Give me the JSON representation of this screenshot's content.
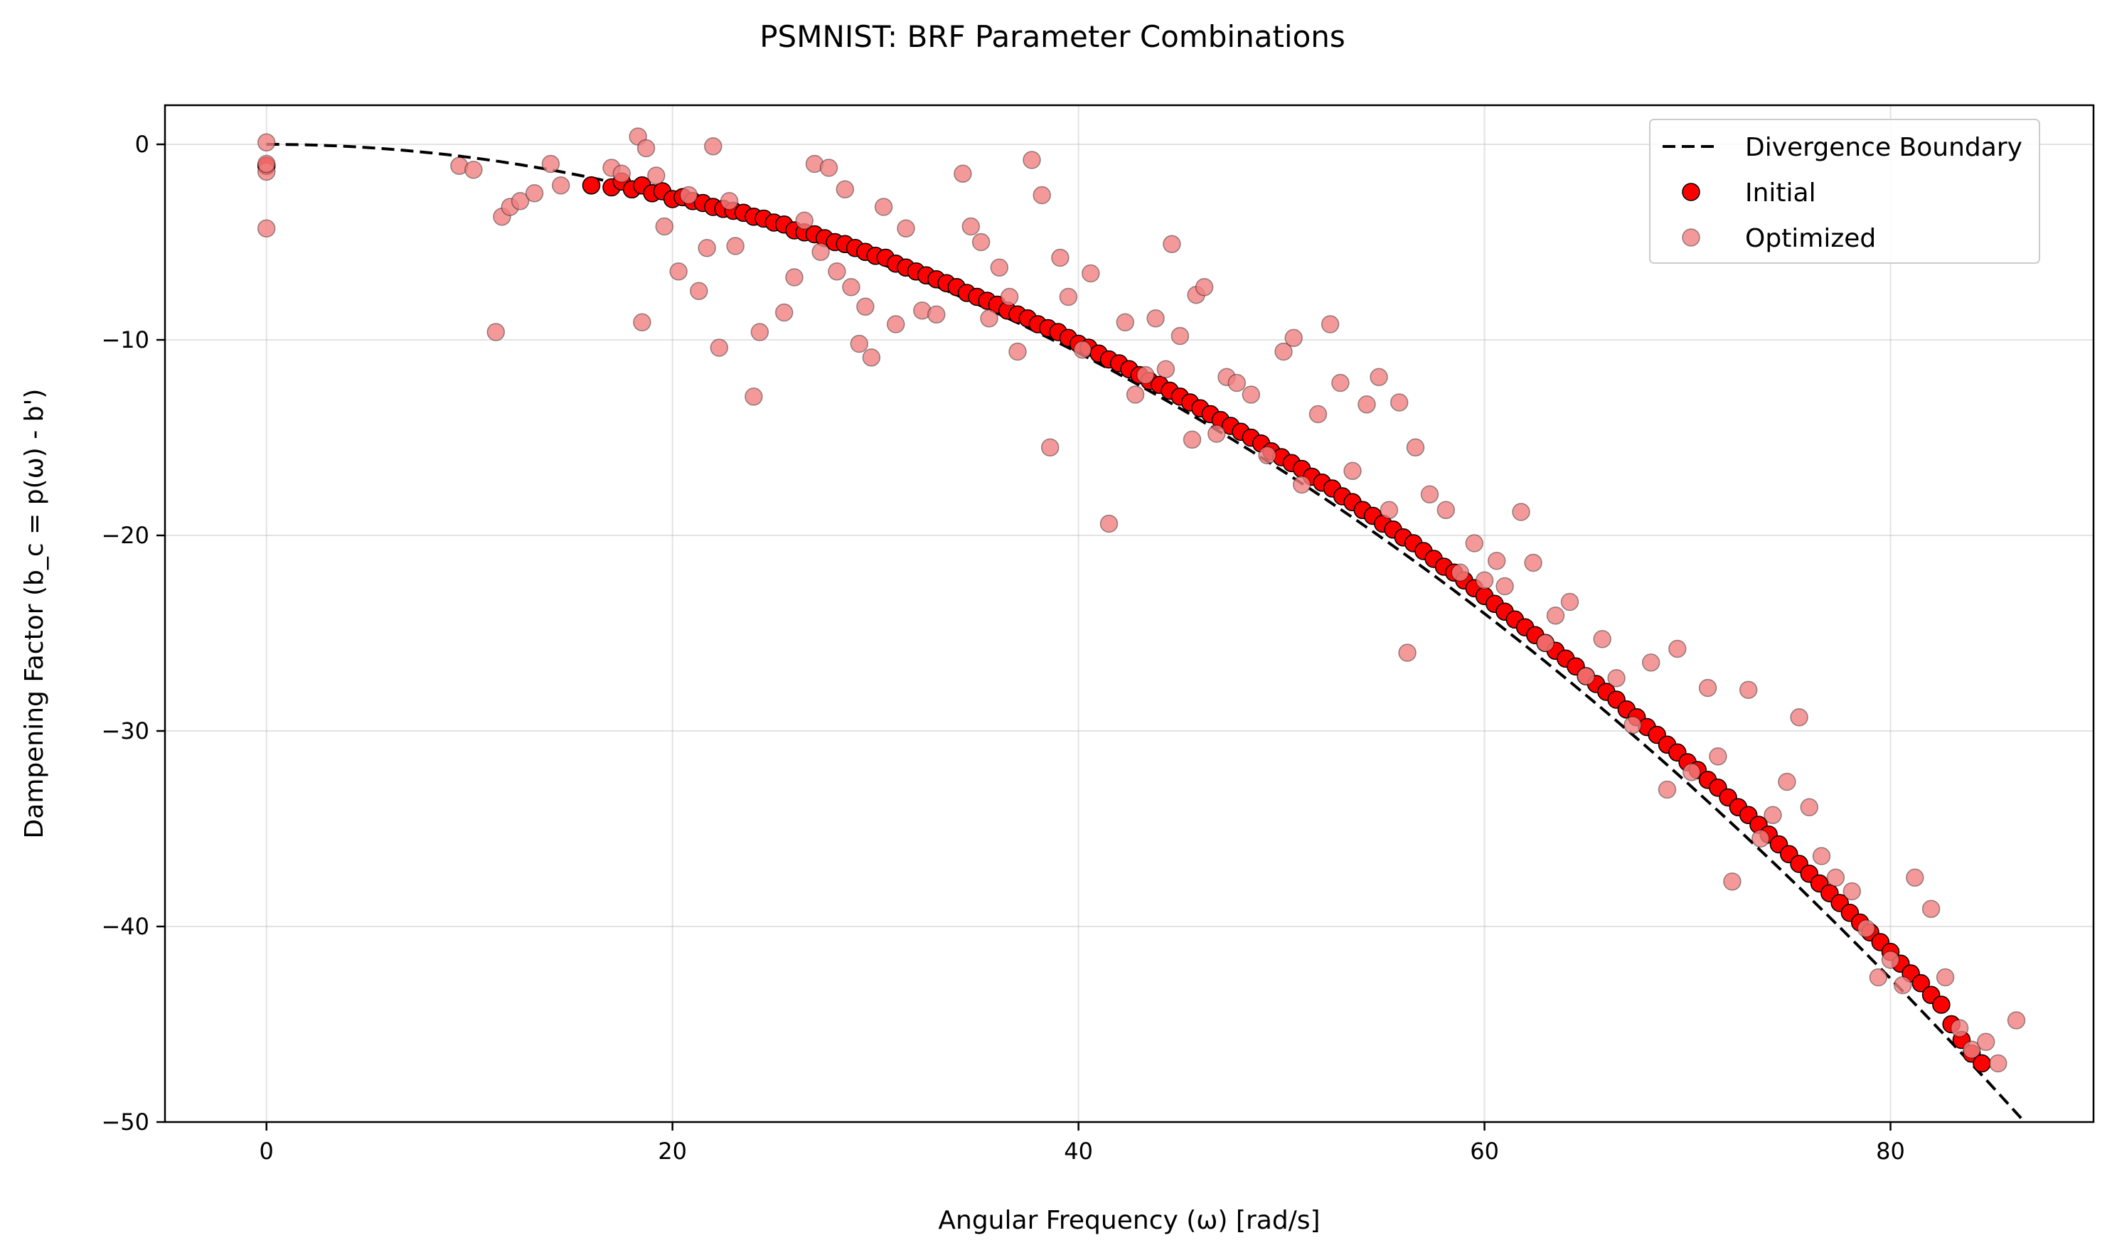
{
  "chart_data": {
    "type": "scatter",
    "title": "PSMNIST: BRF Parameter Combinations",
    "xlabel": "Angular Frequency (ω) [rad/s]",
    "ylabel": "Dampening Factor (b_c = p(ω) - b')",
    "xlim": [
      -5,
      90
    ],
    "ylim": [
      -50,
      2
    ],
    "xticks": [
      0,
      20,
      40,
      60,
      80
    ],
    "yticks": [
      0,
      -10,
      -20,
      -30,
      -40,
      -50
    ],
    "xtick_labels": [
      "0",
      "20",
      "40",
      "60",
      "80"
    ],
    "ytick_labels": [
      "0",
      "−10",
      "−20",
      "−30",
      "−40",
      "−50"
    ],
    "grid": true,
    "legend": {
      "position": "top-right"
    },
    "series": [
      {
        "name": "Divergence Boundary",
        "kind": "line",
        "style": "dashed",
        "color": "#000000",
        "function": "b = -omega^2 / 150",
        "x": [
          0,
          10,
          20,
          30,
          40,
          50,
          60,
          70,
          80,
          86.6
        ],
        "y": [
          0,
          -0.67,
          -2.67,
          -6.0,
          -10.67,
          -16.67,
          -24.0,
          -32.67,
          -42.67,
          -50.0
        ]
      },
      {
        "name": "Initial",
        "kind": "scatter",
        "color": "#ff0000",
        "edgecolor": "#000000",
        "x": [
          0,
          16,
          17,
          17.5,
          18,
          18.5,
          19,
          19.5,
          20,
          20.5,
          21,
          21.5,
          22,
          22.5,
          23,
          23.5,
          24,
          24.5,
          25,
          25.5,
          26,
          26.5,
          27,
          27.5,
          28,
          28.5,
          29,
          29.5,
          30,
          30.5,
          31,
          31.5,
          32,
          32.5,
          33,
          33.5,
          34,
          34.5,
          35,
          35.5,
          36,
          36.5,
          37,
          37.5,
          38,
          38.5,
          39,
          39.5,
          40,
          40.5,
          41,
          41.5,
          42,
          42.5,
          43,
          43.5,
          44,
          44.5,
          45,
          45.5,
          46,
          46.5,
          47,
          47.5,
          48,
          48.5,
          49,
          49.5,
          50,
          50.5,
          51,
          51.5,
          52,
          52.5,
          53,
          53.5,
          54,
          54.5,
          55,
          55.5,
          56,
          56.5,
          57,
          57.5,
          58,
          58.5,
          59,
          59.5,
          60,
          60.5,
          61,
          61.5,
          62,
          62.5,
          63,
          63.5,
          64,
          64.5,
          65,
          65.5,
          66,
          66.5,
          67,
          67.5,
          68,
          68.5,
          69,
          69.5,
          70,
          70.5,
          71,
          71.5,
          72,
          72.5,
          73,
          73.5,
          74,
          74.5,
          75,
          75.5,
          76,
          76.5,
          77,
          77.5,
          78,
          78.5,
          79,
          79.5,
          80,
          80.5,
          81,
          81.5,
          82,
          82.5,
          83,
          83.5,
          84,
          84.5
        ],
        "y": [
          -1.1,
          -2.1,
          -2.2,
          -1.9,
          -2.3,
          -2.1,
          -2.5,
          -2.4,
          -2.8,
          -2.7,
          -2.9,
          -3.0,
          -3.2,
          -3.3,
          -3.4,
          -3.5,
          -3.7,
          -3.8,
          -4.0,
          -4.1,
          -4.4,
          -4.5,
          -4.6,
          -4.8,
          -5.0,
          -5.1,
          -5.3,
          -5.5,
          -5.7,
          -5.8,
          -6.1,
          -6.3,
          -6.5,
          -6.7,
          -6.9,
          -7.1,
          -7.3,
          -7.6,
          -7.8,
          -8.0,
          -8.2,
          -8.5,
          -8.7,
          -8.9,
          -9.2,
          -9.4,
          -9.6,
          -9.9,
          -10.2,
          -10.4,
          -10.7,
          -11.0,
          -11.2,
          -11.5,
          -11.8,
          -12.1,
          -12.3,
          -12.6,
          -12.9,
          -13.2,
          -13.5,
          -13.8,
          -14.1,
          -14.4,
          -14.7,
          -15.0,
          -15.3,
          -15.7,
          -16.0,
          -16.3,
          -16.6,
          -17.0,
          -17.3,
          -17.6,
          -18.0,
          -18.3,
          -18.7,
          -19.0,
          -19.4,
          -19.7,
          -20.1,
          -20.4,
          -20.8,
          -21.2,
          -21.6,
          -21.9,
          -22.3,
          -22.7,
          -23.1,
          -23.5,
          -23.9,
          -24.3,
          -24.7,
          -25.1,
          -25.5,
          -25.9,
          -26.3,
          -26.7,
          -27.2,
          -27.6,
          -28.0,
          -28.4,
          -28.9,
          -29.3,
          -29.8,
          -30.2,
          -30.7,
          -31.1,
          -31.6,
          -32.0,
          -32.5,
          -32.9,
          -33.4,
          -33.9,
          -34.3,
          -34.8,
          -35.3,
          -35.8,
          -36.3,
          -36.8,
          -37.3,
          -37.8,
          -38.3,
          -38.8,
          -39.3,
          -39.8,
          -40.3,
          -40.8,
          -41.3,
          -41.9,
          -42.4,
          -42.9,
          -43.5,
          -44.0,
          -45.0,
          -45.8,
          -46.5,
          -47.0
        ]
      },
      {
        "name": "Optimized",
        "kind": "scatter",
        "color": "#f08080",
        "edgecolor": "#000000",
        "x": [
          0,
          0,
          0,
          0,
          9.5,
          10.2,
          11.3,
          11.6,
          12.0,
          12.5,
          13.2,
          14.0,
          14.5,
          17.0,
          17.5,
          18.3,
          18.5,
          18.7,
          19.2,
          19.6,
          20.3,
          20.8,
          21.3,
          21.7,
          22.0,
          22.3,
          22.8,
          23.1,
          24.0,
          24.3,
          25.5,
          26.0,
          26.5,
          27.0,
          27.3,
          27.7,
          28.1,
          28.5,
          28.8,
          29.2,
          29.5,
          29.8,
          30.4,
          31.0,
          31.5,
          32.3,
          33.0,
          34.3,
          34.7,
          35.2,
          35.6,
          36.1,
          36.6,
          37.0,
          37.7,
          38.2,
          38.6,
          39.1,
          39.5,
          40.2,
          40.6,
          41.5,
          42.3,
          42.8,
          43.3,
          43.8,
          44.3,
          44.6,
          45.0,
          45.6,
          45.8,
          46.2,
          46.8,
          47.3,
          47.8,
          48.5,
          49.3,
          50.1,
          50.6,
          51.0,
          51.8,
          52.4,
          52.9,
          53.5,
          54.2,
          54.8,
          55.3,
          55.8,
          56.2,
          56.6,
          57.3,
          58.1,
          58.8,
          59.5,
          60.0,
          60.6,
          61.0,
          61.8,
          62.4,
          63.0,
          63.5,
          64.2,
          65.0,
          65.8,
          66.5,
          67.3,
          68.2,
          69.0,
          69.5,
          70.2,
          71.0,
          71.5,
          72.2,
          73.0,
          73.6,
          74.2,
          74.9,
          75.5,
          76.0,
          76.6,
          77.3,
          78.1,
          78.8,
          79.4,
          80.0,
          80.6,
          81.2,
          82.0,
          82.7,
          83.4,
          84.0,
          84.7,
          85.3,
          86.2
        ],
        "y": [
          0.1,
          -1.4,
          -1.0,
          -4.3,
          -1.1,
          -1.3,
          -9.6,
          -3.7,
          -3.2,
          -2.9,
          -2.5,
          -1.0,
          -2.1,
          -1.2,
          -1.5,
          0.4,
          -9.1,
          -0.2,
          -1.6,
          -4.2,
          -6.5,
          -2.6,
          -7.5,
          -5.3,
          -0.1,
          -10.4,
          -2.9,
          -5.2,
          -12.9,
          -9.6,
          -8.6,
          -6.8,
          -3.9,
          -1.0,
          -5.5,
          -1.2,
          -6.5,
          -2.3,
          -7.3,
          -10.2,
          -8.3,
          -10.9,
          -3.2,
          -9.2,
          -4.3,
          -8.5,
          -8.7,
          -1.5,
          -4.2,
          -5.0,
          -8.9,
          -6.3,
          -7.8,
          -10.6,
          -0.8,
          -2.6,
          -15.5,
          -5.8,
          -7.8,
          -10.5,
          -6.6,
          -19.4,
          -9.1,
          -12.8,
          -11.8,
          -8.9,
          -11.5,
          -5.1,
          -9.8,
          -15.1,
          -7.7,
          -7.3,
          -14.8,
          -11.9,
          -12.2,
          -12.8,
          -15.9,
          -10.6,
          -9.9,
          -17.4,
          -13.8,
          -9.2,
          -12.2,
          -16.7,
          -13.3,
          -11.9,
          -18.7,
          -13.2,
          -26.0,
          -15.5,
          -17.9,
          -18.7,
          -21.9,
          -20.4,
          -22.3,
          -21.3,
          -22.6,
          -18.8,
          -21.4,
          -25.5,
          -24.1,
          -23.4,
          -27.2,
          -25.3,
          -27.3,
          -29.7,
          -26.5,
          -33.0,
          -25.8,
          -32.1,
          -27.8,
          -31.3,
          -37.7,
          -27.9,
          -35.5,
          -34.3,
          -32.6,
          -29.3,
          -33.9,
          -36.4,
          -37.5,
          -38.2,
          -40.1,
          -42.6,
          -41.7,
          -43.0,
          -37.5,
          -39.1,
          -42.6,
          -45.2,
          -46.3,
          -45.9,
          -47.0,
          -44.8
        ]
      }
    ]
  }
}
